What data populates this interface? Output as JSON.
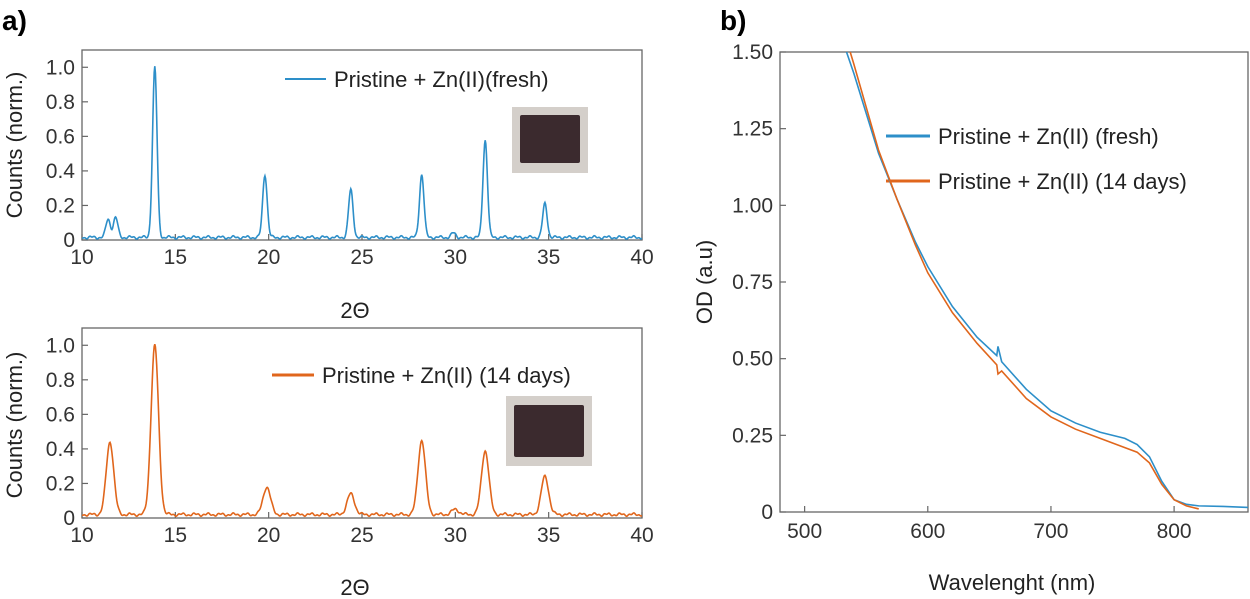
{
  "colors": {
    "fresh": "#2d8fc9",
    "aged": "#e0661c",
    "photo_frame": "#d4cfca",
    "photo_film": "#3b2a2e"
  },
  "panel_labels": [
    "a)",
    "b)"
  ],
  "chart_data": [
    {
      "type": "line",
      "panel": "a",
      "xlabel": "2Θ",
      "ylabel": "Counts (norm.)",
      "xlim": [
        10,
        40
      ],
      "ylim": [
        0,
        1.1
      ],
      "xticks": [
        "10",
        "15",
        "20",
        "25",
        "30",
        "35",
        "40"
      ],
      "yticks": [
        "0",
        "0.2",
        "0.4",
        "0.6",
        "0.8",
        "1.0"
      ],
      "legend_position": "top-right",
      "baseline": 0.015,
      "series": [
        {
          "name": "Pristine + Zn(II)(fresh)",
          "color": "#2d8fc9",
          "peaks": [
            {
              "x": 11.4,
              "y": 0.12
            },
            {
              "x": 11.8,
              "y": 0.13
            },
            {
              "x": 13.9,
              "y": 1.0
            },
            {
              "x": 19.8,
              "y": 0.38
            },
            {
              "x": 24.4,
              "y": 0.29
            },
            {
              "x": 28.2,
              "y": 0.38
            },
            {
              "x": 29.9,
              "y": 0.04
            },
            {
              "x": 31.6,
              "y": 0.58
            },
            {
              "x": 34.8,
              "y": 0.21
            }
          ]
        }
      ],
      "inset_photo": true
    },
    {
      "type": "line",
      "panel": "a",
      "xlabel": "2Θ",
      "ylabel": "Counts (norm.)",
      "xlim": [
        10,
        40
      ],
      "ylim": [
        0,
        1.1
      ],
      "xticks": [
        "10",
        "15",
        "20",
        "25",
        "30",
        "35",
        "40"
      ],
      "yticks": [
        "0",
        "0.2",
        "0.4",
        "0.6",
        "0.8",
        "1.0"
      ],
      "legend_position": "top-right",
      "baseline": 0.02,
      "series": [
        {
          "name": "Pristine + Zn(II) (14 days)",
          "color": "#e0661c",
          "peaks": [
            {
              "x": 11.5,
              "y": 0.44
            },
            {
              "x": 13.9,
              "y": 1.0
            },
            {
              "x": 19.9,
              "y": 0.18
            },
            {
              "x": 24.4,
              "y": 0.14
            },
            {
              "x": 28.2,
              "y": 0.45
            },
            {
              "x": 30.0,
              "y": 0.05
            },
            {
              "x": 31.6,
              "y": 0.39
            },
            {
              "x": 34.8,
              "y": 0.24
            }
          ]
        }
      ],
      "inset_photo": true
    },
    {
      "type": "line",
      "panel": "b",
      "xlabel": "Wavelenght (nm)",
      "ylabel": "OD (a.u)",
      "xlim": [
        480,
        860
      ],
      "ylim": [
        0,
        1.5
      ],
      "xticks": [
        "500",
        "600",
        "700",
        "800"
      ],
      "yticks": [
        "0",
        "0.25",
        "0.50",
        "0.75",
        "1.00",
        "1.25",
        "1.50"
      ],
      "legend_position": "top-right",
      "series": [
        {
          "name": "Pristine + Zn(II) (fresh)",
          "color": "#2d8fc9",
          "x": [
            534,
            540,
            550,
            560,
            575,
            590,
            600,
            620,
            640,
            656,
            657,
            660,
            680,
            700,
            720,
            740,
            760,
            770,
            780,
            790,
            800,
            810,
            820,
            840,
            860
          ],
          "y": [
            1.5,
            1.43,
            1.3,
            1.17,
            1.02,
            0.88,
            0.8,
            0.67,
            0.57,
            0.51,
            0.54,
            0.49,
            0.4,
            0.33,
            0.29,
            0.26,
            0.24,
            0.22,
            0.18,
            0.1,
            0.04,
            0.025,
            0.02,
            0.018,
            0.015
          ]
        },
        {
          "name": "Pristine + Zn(II) (14 days)",
          "color": "#e0661c",
          "x": [
            537,
            540,
            550,
            560,
            575,
            590,
            600,
            620,
            640,
            656,
            657,
            660,
            680,
            700,
            720,
            740,
            760,
            770,
            780,
            790,
            800,
            810,
            820
          ],
          "y": [
            1.5,
            1.46,
            1.32,
            1.18,
            1.02,
            0.87,
            0.78,
            0.65,
            0.55,
            0.48,
            0.45,
            0.46,
            0.37,
            0.31,
            0.27,
            0.24,
            0.21,
            0.195,
            0.16,
            0.09,
            0.04,
            0.02,
            0.01
          ]
        }
      ]
    }
  ]
}
